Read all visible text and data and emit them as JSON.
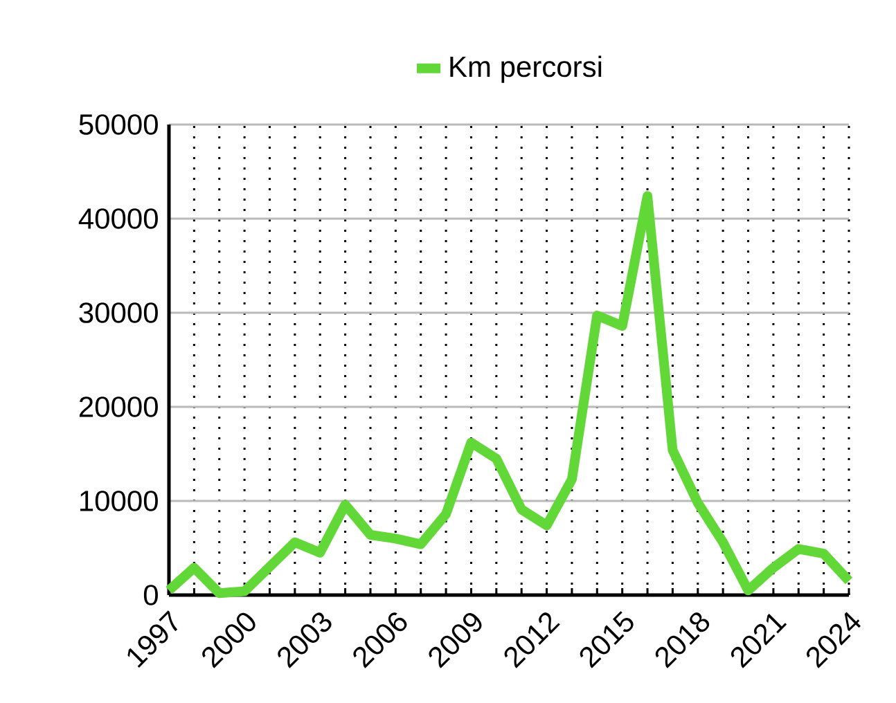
{
  "chart_data": {
    "type": "line",
    "x": [
      1997,
      1998,
      1999,
      2000,
      2001,
      2002,
      2003,
      2004,
      2005,
      2006,
      2007,
      2008,
      2009,
      2010,
      2011,
      2012,
      2013,
      2014,
      2015,
      2016,
      2017,
      2018,
      2019,
      2020,
      2021,
      2022,
      2023,
      2024
    ],
    "series": [
      {
        "name": "Km percorsi",
        "color": "#62d838",
        "values": [
          500,
          2900,
          200,
          400,
          3000,
          5600,
          4500,
          9600,
          6400,
          6000,
          5400,
          8600,
          16200,
          14500,
          9100,
          7400,
          12300,
          29700,
          28600,
          42400,
          15400,
          9800,
          5600,
          500,
          2900,
          4900,
          4400,
          1500
        ]
      }
    ],
    "xlim": [
      1997,
      2024
    ],
    "xticks": [
      1997,
      2000,
      2003,
      2006,
      2009,
      2012,
      2015,
      2018,
      2021,
      2024
    ],
    "ylim": [
      0,
      50000
    ],
    "yticks": [
      0,
      10000,
      20000,
      30000,
      40000,
      50000
    ],
    "grid": true,
    "legend": "top",
    "marker": "none",
    "line_style": "solid"
  }
}
